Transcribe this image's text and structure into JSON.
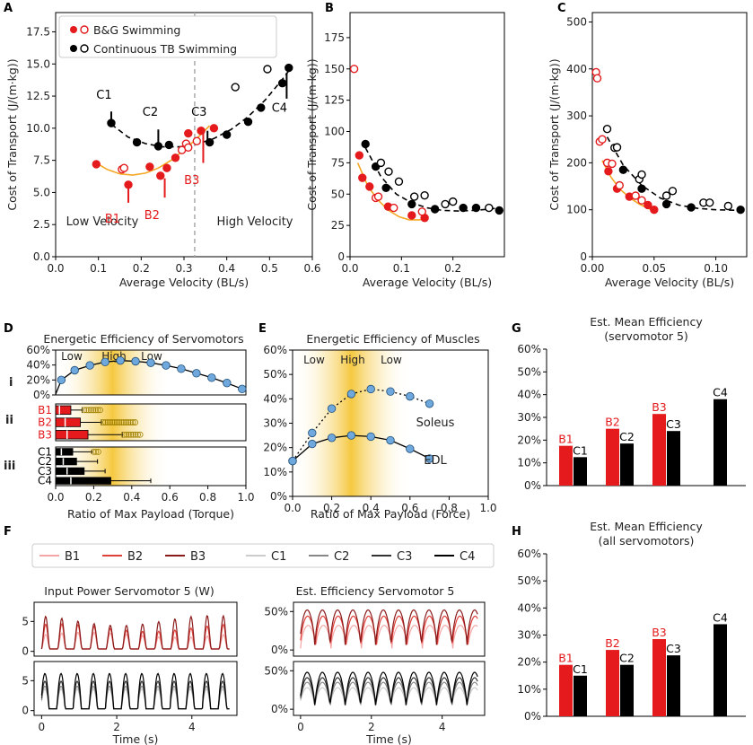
{
  "panel_letters": {
    "A": "A",
    "B": "B",
    "C": "C",
    "D": "D",
    "E": "E",
    "F": "F",
    "G": "G",
    "H": "H"
  },
  "colors": {
    "red": "#e41a1c",
    "black": "#000000",
    "orange": "#f5a623",
    "blue_fill": "#6fa8dc",
    "blue_edge": "#1f4e79",
    "gold": "#f2b600",
    "dashed_divider": "#aaaaaa",
    "B1": "#f4a6a6",
    "B2": "#e0403a",
    "B3": "#8b1a1a",
    "C1": "#cccccc",
    "C2": "#888888",
    "C3": "#333333",
    "C4": "#000000"
  },
  "chart_data": [
    {
      "id": "A",
      "type": "scatter",
      "title": "",
      "xlabel": "Average Velocity (BL/s)",
      "ylabel": "Cost of Transport (J/(m·kg))",
      "xlim": [
        0.0,
        0.6
      ],
      "ylim": [
        0.0,
        19.0
      ],
      "xticks": [
        0.0,
        0.1,
        0.2,
        0.3,
        0.4,
        0.5,
        0.6
      ],
      "xtick_labels": [
        "0.0",
        "0.1",
        "0.2",
        "0.3",
        "0.4",
        "0.5",
        "0.6"
      ],
      "yticks": [
        0.0,
        2.5,
        5.0,
        7.5,
        10.0,
        12.5,
        15.0,
        17.5
      ],
      "ytick_labels": [
        "0.0",
        "2.5",
        "5.0",
        "7.5",
        "10.0",
        "12.5",
        "15.0",
        "17.5"
      ],
      "legend": [
        "B&G Swimming",
        "Continuous TB Swimming"
      ],
      "divider_x": 0.325,
      "region_labels": [
        "Low Velocity",
        "High Velocity"
      ],
      "series": [
        {
          "name": "B&G filled",
          "color": "red",
          "filled": true,
          "x": [
            0.095,
            0.17,
            0.22,
            0.245,
            0.26,
            0.28,
            0.31,
            0.34,
            0.37
          ],
          "y": [
            7.2,
            5.6,
            7.0,
            6.3,
            6.9,
            7.7,
            9.6,
            9.8,
            10.0
          ]
        },
        {
          "name": "B&G open",
          "color": "red",
          "filled": false,
          "x": [
            0.155,
            0.16,
            0.295,
            0.305,
            0.31,
            0.33
          ],
          "y": [
            6.8,
            6.9,
            8.3,
            8.8,
            8.5,
            9.0
          ]
        },
        {
          "name": "TB filled",
          "color": "black",
          "filled": true,
          "x": [
            0.13,
            0.19,
            0.24,
            0.265,
            0.36,
            0.4,
            0.45,
            0.48,
            0.53,
            0.545
          ],
          "y": [
            10.4,
            8.9,
            8.6,
            8.7,
            8.9,
            9.5,
            10.5,
            11.6,
            13.5,
            14.7
          ]
        },
        {
          "name": "TB open",
          "color": "black",
          "filled": false,
          "x": [
            0.42,
            0.495
          ],
          "y": [
            13.2,
            14.6
          ]
        }
      ],
      "fit_red": {
        "x": [
          0.09,
          0.12,
          0.15,
          0.18,
          0.21,
          0.24,
          0.27,
          0.3,
          0.33,
          0.36
        ],
        "y": [
          7.4,
          6.8,
          6.45,
          6.35,
          6.5,
          6.9,
          7.5,
          8.3,
          9.2,
          10.2
        ]
      },
      "fit_black": {
        "x": [
          0.13,
          0.17,
          0.21,
          0.25,
          0.29,
          0.33,
          0.37,
          0.41,
          0.45,
          0.49,
          0.53,
          0.55
        ],
        "y": [
          10.3,
          9.3,
          8.8,
          8.55,
          8.55,
          8.75,
          9.2,
          9.9,
          10.9,
          12.2,
          13.8,
          14.7
        ]
      },
      "annotations": [
        {
          "text": "C1",
          "color": "black",
          "x": 0.13,
          "y": 12.0
        },
        {
          "text": "C2",
          "color": "black",
          "x": 0.238,
          "y": 10.7
        },
        {
          "text": "C3",
          "color": "black",
          "x": 0.352,
          "y": 10.7
        },
        {
          "text": "C4",
          "color": "black",
          "x": 0.54,
          "y": 11.0
        },
        {
          "text": "B1",
          "color": "red",
          "x": 0.15,
          "y": 3.2
        },
        {
          "text": "B2",
          "color": "red",
          "x": 0.242,
          "y": 3.5
        },
        {
          "text": "B3",
          "color": "red",
          "x": 0.335,
          "y": 6.2
        }
      ]
    },
    {
      "id": "B",
      "type": "scatter",
      "xlabel": "Average Velocity (BL/s)",
      "ylabel": "Cost of Transport (J/(m·kg))",
      "xlim": [
        0.0,
        0.3
      ],
      "ylim": [
        0.0,
        195.0
      ],
      "xticks": [
        0.0,
        0.1,
        0.2
      ],
      "xtick_labels": [
        "0.0",
        "0.1",
        "0.2"
      ],
      "yticks": [
        0,
        25,
        50,
        75,
        100,
        125,
        150,
        175
      ],
      "ytick_labels": [
        "0",
        "25",
        "50",
        "75",
        "100",
        "125",
        "150",
        "175"
      ],
      "series": [
        {
          "name": "B&G filled",
          "color": "red",
          "filled": true,
          "x": [
            0.018,
            0.024,
            0.038,
            0.074,
            0.12,
            0.145
          ],
          "y": [
            81,
            63,
            56,
            40,
            33,
            31
          ]
        },
        {
          "name": "B&G open",
          "color": "red",
          "filled": false,
          "x": [
            0.008,
            0.05,
            0.055,
            0.085,
            0.14
          ],
          "y": [
            150,
            47,
            48,
            39,
            36
          ]
        },
        {
          "name": "TB filled",
          "color": "black",
          "filled": true,
          "x": [
            0.03,
            0.05,
            0.07,
            0.12,
            0.165,
            0.22,
            0.245,
            0.29
          ],
          "y": [
            90,
            72,
            55,
            42,
            38,
            39,
            39,
            37
          ]
        },
        {
          "name": "TB open",
          "color": "black",
          "filled": false,
          "x": [
            0.06,
            0.075,
            0.095,
            0.125,
            0.145,
            0.185,
            0.2,
            0.27
          ],
          "y": [
            75,
            68,
            60,
            48,
            49,
            42,
            44,
            39
          ]
        }
      ],
      "fit_red": {
        "x": [
          0.015,
          0.035,
          0.055,
          0.075,
          0.095,
          0.115,
          0.135,
          0.15
        ],
        "y": [
          75,
          56,
          45,
          37,
          32,
          29.5,
          29.5,
          31
        ]
      },
      "fit_black": {
        "x": [
          0.03,
          0.06,
          0.09,
          0.12,
          0.15,
          0.18,
          0.21,
          0.24,
          0.27,
          0.29
        ],
        "y": [
          87,
          64,
          50,
          43,
          39,
          37,
          36.5,
          37,
          38,
          39
        ]
      }
    },
    {
      "id": "C",
      "type": "scatter",
      "xlabel": "Average Velocity (BL/s)",
      "ylabel": "Cost of Transport (J/(m·kg))",
      "xlim": [
        0.0,
        0.125
      ],
      "ylim": [
        0.0,
        520.0
      ],
      "xticks": [
        0.0,
        0.05,
        0.1
      ],
      "xtick_labels": [
        "0.00",
        "0.05",
        "0.10"
      ],
      "yticks": [
        0,
        100,
        200,
        300,
        400,
        500
      ],
      "ytick_labels": [
        "0",
        "100",
        "200",
        "300",
        "400",
        "500"
      ],
      "series": [
        {
          "name": "B&G filled",
          "color": "red",
          "filled": true,
          "x": [
            0.013,
            0.02,
            0.03,
            0.045,
            0.05
          ],
          "y": [
            182,
            145,
            128,
            110,
            100
          ]
        },
        {
          "name": "B&G open",
          "color": "red",
          "filled": false,
          "x": [
            0.003,
            0.004,
            0.006,
            0.008,
            0.012,
            0.016,
            0.022,
            0.035,
            0.04
          ],
          "y": [
            393,
            380,
            245,
            250,
            200,
            198,
            152,
            130,
            120
          ]
        },
        {
          "name": "TB filled",
          "color": "black",
          "filled": true,
          "x": [
            0.025,
            0.04,
            0.06,
            0.08,
            0.12
          ],
          "y": [
            185,
            145,
            112,
            105,
            100
          ]
        },
        {
          "name": "TB open",
          "color": "black",
          "filled": false,
          "x": [
            0.012,
            0.018,
            0.02,
            0.038,
            0.04,
            0.06,
            0.065,
            0.09,
            0.095,
            0.11
          ],
          "y": [
            272,
            232,
            233,
            165,
            175,
            130,
            140,
            115,
            115,
            108
          ]
        }
      ],
      "fit_red": {
        "x": [
          0.008,
          0.015,
          0.022,
          0.03,
          0.038,
          0.046,
          0.052
        ],
        "y": [
          205,
          170,
          145,
          126,
          112,
          102,
          98
        ]
      },
      "fit_black": {
        "x": [
          0.012,
          0.025,
          0.04,
          0.055,
          0.07,
          0.085,
          0.1,
          0.115,
          0.12
        ],
        "y": [
          255,
          195,
          152,
          125,
          110,
          103,
          100,
          99,
          100
        ]
      }
    },
    {
      "id": "D",
      "type": "line",
      "title": "Energetic Efficiency of Servomotors",
      "xlabel": "Ratio of Max Payload (Torque)",
      "xlim": [
        0.0,
        1.0
      ],
      "ylim": [
        0.0,
        60.0
      ],
      "xticks": [
        0.0,
        0.2,
        0.4,
        0.6,
        0.8,
        1.0
      ],
      "xtick_labels": [
        "0.0",
        "0.2",
        "0.4",
        "0.6",
        "0.8",
        "1.0"
      ],
      "yticks": [
        0,
        20,
        40,
        60
      ],
      "ytick_labels": [
        "0%",
        "20%",
        "40%",
        "60%"
      ],
      "row_labels": [
        "i",
        "ii",
        "iii"
      ],
      "band_labels": [
        "Low",
        "High",
        "Low"
      ],
      "curve": {
        "x": [
          0.0,
          0.03,
          0.1,
          0.18,
          0.26,
          0.34,
          0.42,
          0.5,
          0.58,
          0.66,
          0.74,
          0.82,
          0.9,
          0.98
        ],
        "y": [
          1,
          20,
          33,
          39.5,
          44,
          46,
          45,
          43,
          39.5,
          35,
          29,
          23,
          16,
          8
        ]
      },
      "box_labels_red": [
        "B1",
        "B2",
        "B3"
      ],
      "box_labels_black": [
        "C1",
        "C2",
        "C3",
        "C4"
      ],
      "boxes_red": [
        {
          "q1": 0.0,
          "med": 0.02,
          "q3": 0.08,
          "whisker": 0.14,
          "outliers_from": 0.15,
          "outliers_to": 0.24
        },
        {
          "q1": 0.0,
          "med": 0.05,
          "q3": 0.13,
          "whisker": 0.24,
          "outliers_from": 0.25,
          "outliers_to": 0.42
        },
        {
          "q1": 0.0,
          "med": 0.06,
          "q3": 0.17,
          "whisker": 0.35,
          "outliers_from": 0.36,
          "outliers_to": 0.45
        }
      ],
      "boxes_black": [
        {
          "q1": 0.0,
          "med": 0.03,
          "q3": 0.09,
          "whisker": 0.19,
          "outliers_from": 0.2,
          "outliers_to": 0.23
        },
        {
          "q1": 0.0,
          "med": 0.04,
          "q3": 0.11,
          "whisker": 0.22,
          "outliers_from": 0.0,
          "outliers_to": 0.0
        },
        {
          "q1": 0.0,
          "med": 0.06,
          "q3": 0.15,
          "whisker": 0.26,
          "outliers_from": 0.0,
          "outliers_to": 0.0
        },
        {
          "q1": 0.0,
          "med": 0.08,
          "q3": 0.29,
          "whisker": 0.5,
          "outliers_from": 0.0,
          "outliers_to": 0.0
        }
      ]
    },
    {
      "id": "E",
      "type": "line",
      "title": "Energetic Efficiency of Muscles",
      "xlabel": "Ratio of Max Payload (Force)",
      "xlim": [
        0.0,
        1.0
      ],
      "ylim": [
        0.0,
        60.0
      ],
      "xticks": [
        0.0,
        0.2,
        0.4,
        0.6,
        0.8,
        1.0
      ],
      "xtick_labels": [
        "0.0",
        "0.2",
        "0.4",
        "0.6",
        "0.8",
        "1.0"
      ],
      "yticks": [
        0,
        10,
        20,
        30,
        40,
        50,
        60
      ],
      "ytick_labels": [
        "0%",
        "10%",
        "20%",
        "30%",
        "40%",
        "50%",
        "60%"
      ],
      "band_labels": [
        "Low",
        "High",
        "Low"
      ],
      "series": [
        {
          "name": "Soleus",
          "x": [
            0.0,
            0.1,
            0.2,
            0.3,
            0.4,
            0.5,
            0.6,
            0.7
          ],
          "y": [
            14.5,
            26,
            36,
            42,
            44,
            43,
            41,
            38
          ]
        },
        {
          "name": "EDL",
          "x": [
            0.0,
            0.1,
            0.2,
            0.3,
            0.4,
            0.5,
            0.6,
            0.7
          ],
          "y": [
            14.5,
            21.5,
            24,
            25,
            24.5,
            23,
            19.5,
            15.5
          ]
        }
      ],
      "series_labels": [
        "Soleus",
        "EDL"
      ]
    },
    {
      "id": "F",
      "type": "line",
      "legend": [
        "B1",
        "B2",
        "B3",
        "C1",
        "C2",
        "C3",
        "C4"
      ],
      "subplot_titles": [
        "Input Power Servomotor 5 (W)",
        "Est. Efficiency Servomotor 5"
      ],
      "xlabel": "Time (s)",
      "xlim": [
        -0.2,
        5.2
      ],
      "xticks": [
        0,
        2,
        4
      ],
      "xtick_labels": [
        "0",
        "2",
        "4"
      ],
      "power_yticks": [
        0,
        5
      ],
      "power_ytick_labels": [
        "0",
        "5"
      ],
      "power_ylim": [
        -0.8,
        8.2
      ],
      "eff_yticks": [
        0,
        50
      ],
      "eff_ytick_labels": [
        "0%",
        "50%"
      ],
      "eff_ylim": [
        -8,
        62
      ],
      "period_B": 0.43,
      "period_C": 0.43
    },
    {
      "id": "G",
      "type": "bar",
      "title_lines": [
        "Est. Mean Efficiency",
        "(servomotor 5)"
      ],
      "ylim": [
        0,
        60
      ],
      "yticks": [
        0,
        10,
        20,
        30,
        40,
        50,
        60
      ],
      "ytick_labels": [
        "0%",
        "10%",
        "20%",
        "30%",
        "40%",
        "50%",
        "60%"
      ],
      "bars": [
        {
          "label": "B1",
          "value": 17.5,
          "color": "red"
        },
        {
          "label": "C1",
          "value": 12.5,
          "color": "black"
        },
        {
          "label": "B2",
          "value": 25.0,
          "color": "red"
        },
        {
          "label": "C2",
          "value": 18.5,
          "color": "black"
        },
        {
          "label": "B3",
          "value": 31.5,
          "color": "red"
        },
        {
          "label": "C3",
          "value": 24.0,
          "color": "black"
        },
        {
          "label": "C4",
          "value": 38.0,
          "color": "black"
        }
      ]
    },
    {
      "id": "H",
      "type": "bar",
      "title_lines": [
        "Est. Mean Efficiency",
        "(all servomotors)"
      ],
      "ylim": [
        0,
        60
      ],
      "yticks": [
        0,
        10,
        20,
        30,
        40,
        50,
        60
      ],
      "ytick_labels": [
        "0%",
        "10%",
        "20%",
        "30%",
        "40%",
        "50%",
        "60%"
      ],
      "bars": [
        {
          "label": "B1",
          "value": 19.0,
          "color": "red"
        },
        {
          "label": "C1",
          "value": 15.0,
          "color": "black"
        },
        {
          "label": "B2",
          "value": 24.5,
          "color": "red"
        },
        {
          "label": "C2",
          "value": 19.0,
          "color": "black"
        },
        {
          "label": "B3",
          "value": 28.5,
          "color": "red"
        },
        {
          "label": "C3",
          "value": 22.5,
          "color": "black"
        },
        {
          "label": "C4",
          "value": 34.0,
          "color": "black"
        }
      ]
    }
  ]
}
